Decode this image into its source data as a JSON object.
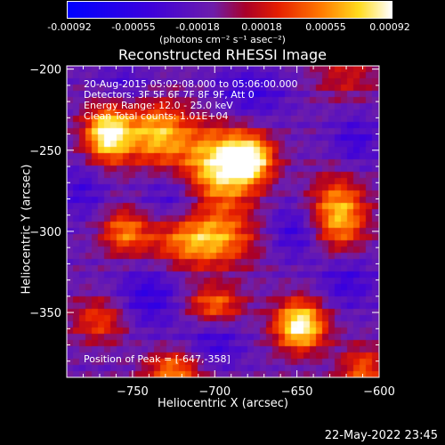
{
  "colorbar": {
    "tick_labels": [
      "-0.00092",
      "-0.00055",
      "-0.00018",
      "0.00018",
      "0.00055",
      "0.00092"
    ],
    "unit_label": "(photons cm⁻² s⁻¹ asec⁻²)",
    "range": [
      -0.00092,
      0.00092
    ]
  },
  "chart_data": {
    "type": "heatmap",
    "title": "Reconstructed RHESSI Image",
    "xlabel": "Heliocentric X (arcsec)",
    "ylabel": "Heliocentric Y (arcsec)",
    "xlim": [
      -790,
      -600
    ],
    "ylim": [
      -390,
      -198
    ],
    "x_ticks": [
      -750,
      -700,
      -650,
      -600
    ],
    "y_ticks": [
      -200,
      -250,
      -300,
      -350
    ],
    "x_tick_labels": [
      "−750",
      "−700",
      "−650",
      "−600"
    ],
    "y_tick_labels": [
      "−200",
      "−250",
      "−300",
      "−350"
    ],
    "info_lines": [
      "20-Aug-2015 05:02:08.000 to 05:06:00.000",
      "Detectors: 3F 5F 6F 7F 8F 9F, Att 0",
      "Energy Range: 12.0 - 25.0 keV",
      "Clean     Total counts: 1.01E+04"
    ],
    "peak_label": "Position of Peak = [-647,-358]",
    "peak": [
      -647,
      -358
    ],
    "sources": [
      {
        "x": -765,
        "y": -240,
        "sx": 10,
        "sy": 12,
        "amp": 1.0
      },
      {
        "x": -735,
        "y": -240,
        "sx": 14,
        "sy": 14,
        "amp": 0.75
      },
      {
        "x": -698,
        "y": -262,
        "sx": 16,
        "sy": 18,
        "amp": 0.95
      },
      {
        "x": -678,
        "y": -255,
        "sx": 10,
        "sy": 10,
        "amp": 0.8
      },
      {
        "x": -708,
        "y": -305,
        "sx": 22,
        "sy": 12,
        "amp": 0.8
      },
      {
        "x": -755,
        "y": -300,
        "sx": 10,
        "sy": 10,
        "amp": 0.55
      },
      {
        "x": -625,
        "y": -290,
        "sx": 12,
        "sy": 16,
        "amp": 0.8
      },
      {
        "x": -648,
        "y": -358,
        "sx": 11,
        "sy": 11,
        "amp": 1.0
      },
      {
        "x": -700,
        "y": -345,
        "sx": 12,
        "sy": 8,
        "amp": 0.55
      },
      {
        "x": -770,
        "y": -355,
        "sx": 12,
        "sy": 10,
        "amp": 0.45
      },
      {
        "x": -725,
        "y": -385,
        "sx": 12,
        "sy": 8,
        "amp": 0.6
      },
      {
        "x": -610,
        "y": -385,
        "sx": 10,
        "sy": 10,
        "amp": 0.5
      },
      {
        "x": -620,
        "y": -205,
        "sx": 14,
        "sy": 10,
        "amp": 0.3
      }
    ],
    "negatives": [
      {
        "x": -720,
        "y": -280,
        "sx": 16,
        "sy": 14,
        "amp": 0.6
      },
      {
        "x": -650,
        "y": -300,
        "sx": 14,
        "sy": 12,
        "amp": 0.55
      },
      {
        "x": -680,
        "y": -215,
        "sx": 16,
        "sy": 12,
        "amp": 0.5
      },
      {
        "x": -740,
        "y": -340,
        "sx": 14,
        "sy": 14,
        "amp": 0.55
      },
      {
        "x": -700,
        "y": -370,
        "sx": 12,
        "sy": 10,
        "amp": 0.45
      },
      {
        "x": -620,
        "y": -330,
        "sx": 12,
        "sy": 12,
        "amp": 0.5
      },
      {
        "x": -780,
        "y": -275,
        "sx": 10,
        "sy": 12,
        "amp": 0.4
      },
      {
        "x": -615,
        "y": -245,
        "sx": 10,
        "sy": 12,
        "amp": 0.45
      },
      {
        "x": -755,
        "y": -210,
        "sx": 12,
        "sy": 10,
        "amp": 0.35
      }
    ]
  },
  "timestamp": "22-May-2022 23:45"
}
